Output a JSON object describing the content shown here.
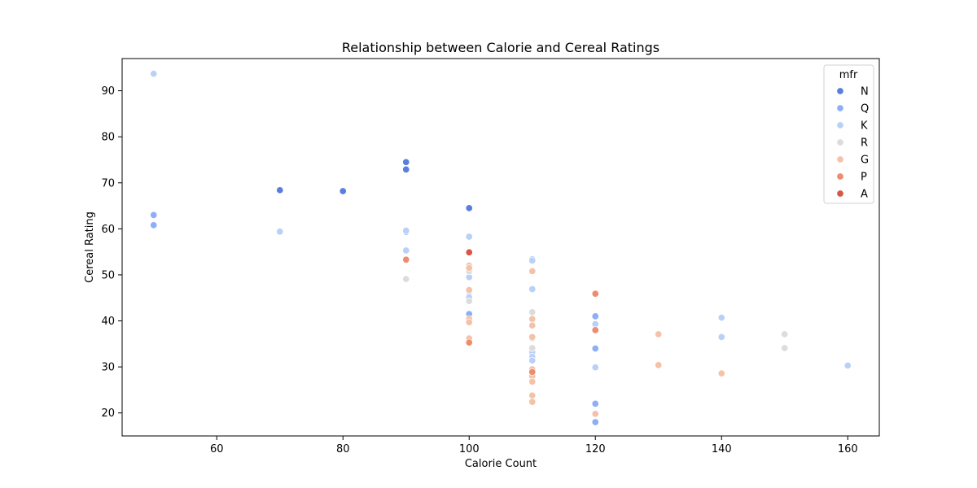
{
  "chart_data": {
    "type": "scatter",
    "title": "Relationship between Calorie and Cereal Ratings",
    "xlabel": "Calorie Count",
    "ylabel": "Cereal Rating",
    "xlim": [
      45,
      165
    ],
    "ylim": [
      15,
      97
    ],
    "xticks": [
      60,
      80,
      100,
      120,
      140,
      160
    ],
    "yticks": [
      20,
      30,
      40,
      50,
      60,
      70,
      80,
      90
    ],
    "grid": false,
    "legend": {
      "title": "mfr",
      "position": "top-right"
    },
    "series": [
      {
        "name": "N",
        "color": "#5a7ee0",
        "points": [
          [
            70,
            68.4
          ],
          [
            80,
            68.2
          ],
          [
            90,
            74.5
          ],
          [
            90,
            72.9
          ],
          [
            90,
            59.4
          ],
          [
            100,
            64.5
          ],
          [
            100,
            45.5
          ]
        ]
      },
      {
        "name": "Q",
        "color": "#8daff5",
        "points": [
          [
            50,
            63.0
          ],
          [
            50,
            60.8
          ],
          [
            100,
            41.5
          ],
          [
            100,
            45.3
          ],
          [
            120,
            41.0
          ],
          [
            120,
            34.0
          ],
          [
            120,
            22.0
          ],
          [
            120,
            18.0
          ]
        ]
      },
      {
        "name": "K",
        "color": "#b9d0f8",
        "points": [
          [
            50,
            93.7
          ],
          [
            70,
            59.4
          ],
          [
            90,
            55.3
          ],
          [
            90,
            59.6
          ],
          [
            100,
            58.3
          ],
          [
            100,
            50.8
          ],
          [
            100,
            49.5
          ],
          [
            100,
            45.1
          ],
          [
            110,
            53.4
          ],
          [
            110,
            53.1
          ],
          [
            110,
            46.9
          ],
          [
            110,
            40.5
          ],
          [
            110,
            33.2
          ],
          [
            110,
            32.2
          ],
          [
            110,
            31.4
          ],
          [
            110,
            39.2
          ],
          [
            120,
            39.3
          ],
          [
            120,
            29.9
          ],
          [
            140,
            40.7
          ],
          [
            140,
            36.5
          ],
          [
            160,
            30.3
          ]
        ]
      },
      {
        "name": "R",
        "color": "#dcdcdc",
        "points": [
          [
            90,
            49.1
          ],
          [
            100,
            50.8
          ],
          [
            100,
            44.3
          ],
          [
            110,
            41.9
          ],
          [
            110,
            36.2
          ],
          [
            110,
            34.1
          ],
          [
            150,
            37.1
          ],
          [
            150,
            34.1
          ]
        ]
      },
      {
        "name": "G",
        "color": "#f4c2a8",
        "points": [
          [
            100,
            52.0
          ],
          [
            100,
            51.5
          ],
          [
            100,
            46.7
          ],
          [
            100,
            40.4
          ],
          [
            100,
            39.7
          ],
          [
            100,
            36.2
          ],
          [
            110,
            50.8
          ],
          [
            110,
            40.4
          ],
          [
            110,
            39.0
          ],
          [
            110,
            36.5
          ],
          [
            110,
            29.5
          ],
          [
            110,
            28.0
          ],
          [
            110,
            26.8
          ],
          [
            110,
            23.8
          ],
          [
            110,
            22.4
          ],
          [
            120,
            19.8
          ],
          [
            130,
            37.1
          ],
          [
            130,
            30.4
          ],
          [
            140,
            28.6
          ]
        ]
      },
      {
        "name": "P",
        "color": "#ee8c6d",
        "points": [
          [
            90,
            53.3
          ],
          [
            100,
            35.3
          ],
          [
            110,
            28.9
          ],
          [
            120,
            45.9
          ],
          [
            120,
            38.0
          ]
        ]
      },
      {
        "name": "A",
        "color": "#d95545",
        "points": [
          [
            100,
            54.9
          ]
        ]
      }
    ]
  }
}
